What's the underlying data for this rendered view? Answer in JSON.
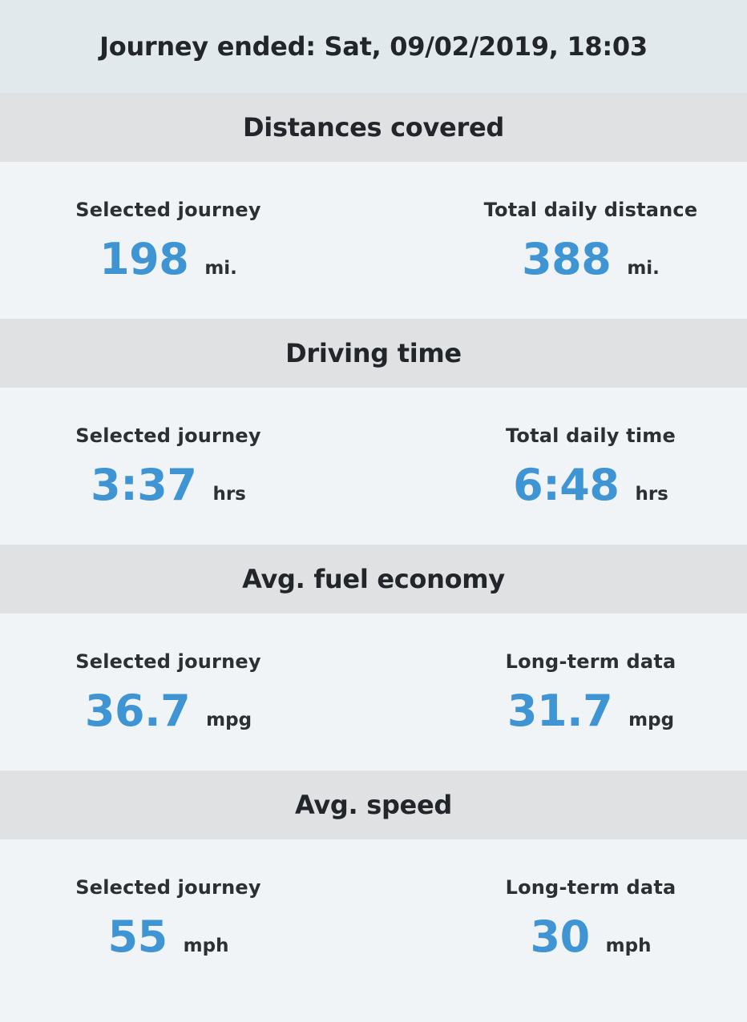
{
  "journey_ended": "Journey ended: Sat, 09/02/2019, 18:03",
  "sections": [
    {
      "title": "Distances covered",
      "left": {
        "label": "Selected journey",
        "value": "198",
        "unit": "mi."
      },
      "right": {
        "label": "Total daily distance",
        "value": "388",
        "unit": "mi."
      }
    },
    {
      "title": "Driving time",
      "left": {
        "label": "Selected journey",
        "value": "3:37",
        "unit": "hrs"
      },
      "right": {
        "label": "Total daily time",
        "value": "6:48",
        "unit": "hrs"
      }
    },
    {
      "title": "Avg. fuel economy",
      "left": {
        "label": "Selected journey",
        "value": "36.7",
        "unit": "mpg"
      },
      "right": {
        "label": "Long-term data",
        "value": "31.7",
        "unit": "mpg"
      }
    },
    {
      "title": "Avg. speed",
      "left": {
        "label": "Selected journey",
        "value": "55",
        "unit": "mph"
      },
      "right": {
        "label": "Long-term data",
        "value": "30",
        "unit": "mph"
      }
    }
  ],
  "colors": {
    "value_accent": "#3f95d3",
    "header_bg": "#e2e9ec",
    "section_header_bg": "#e0e1e3",
    "body_bg": "#f0f4f6",
    "text": "#22262a"
  }
}
